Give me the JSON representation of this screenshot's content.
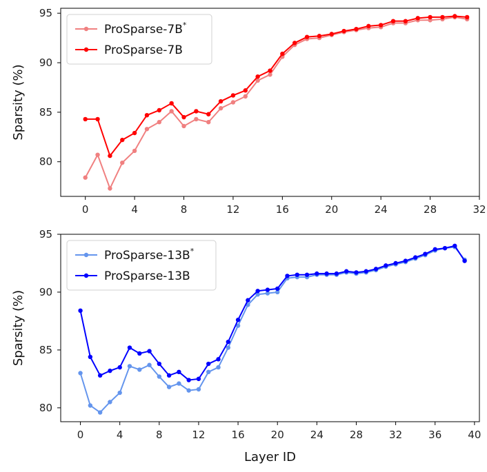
{
  "chart_data": [
    {
      "type": "line",
      "ylabel": "Sparsity (%)",
      "xlabel": "",
      "xlim": [
        -2,
        32
      ],
      "ylim": [
        76.5,
        95.5
      ],
      "xticks": [
        0,
        4,
        8,
        12,
        16,
        20,
        24,
        28,
        32
      ],
      "yticks": [
        80,
        85,
        90,
        95
      ],
      "grid": false,
      "legend_position": "top-left",
      "series": [
        {
          "name": "ProSparse-7B",
          "name_sup": "*",
          "color": "#f08080",
          "x": [
            0,
            1,
            2,
            3,
            4,
            5,
            6,
            7,
            8,
            9,
            10,
            11,
            12,
            13,
            14,
            15,
            16,
            17,
            18,
            19,
            20,
            21,
            22,
            23,
            24,
            25,
            26,
            27,
            28,
            29,
            30,
            31
          ],
          "values": [
            78.4,
            80.7,
            77.3,
            79.9,
            81.1,
            83.3,
            84.0,
            85.1,
            83.6,
            84.3,
            84.0,
            85.4,
            86.0,
            86.6,
            88.2,
            88.8,
            90.6,
            91.8,
            92.4,
            92.5,
            92.8,
            93.1,
            93.3,
            93.5,
            93.6,
            94.0,
            94.0,
            94.3,
            94.3,
            94.4,
            94.6,
            94.4
          ]
        },
        {
          "name": "ProSparse-7B",
          "name_sup": "",
          "color": "#ff0000",
          "x": [
            0,
            1,
            2,
            3,
            4,
            5,
            6,
            7,
            8,
            9,
            10,
            11,
            12,
            13,
            14,
            15,
            16,
            17,
            18,
            19,
            20,
            21,
            22,
            23,
            24,
            25,
            26,
            27,
            28,
            29,
            30,
            31
          ],
          "values": [
            84.3,
            84.3,
            80.6,
            82.2,
            82.9,
            84.7,
            85.2,
            85.9,
            84.5,
            85.1,
            84.8,
            86.1,
            86.7,
            87.2,
            88.6,
            89.2,
            90.9,
            92.0,
            92.6,
            92.7,
            92.9,
            93.2,
            93.4,
            93.7,
            93.8,
            94.2,
            94.2,
            94.5,
            94.6,
            94.6,
            94.7,
            94.6
          ]
        }
      ]
    },
    {
      "type": "line",
      "ylabel": "Sparsity (%)",
      "xlabel": "Layer ID",
      "xlim": [
        -2,
        40.5
      ],
      "ylim": [
        78.8,
        95.0
      ],
      "xticks": [
        0,
        4,
        8,
        12,
        16,
        20,
        24,
        28,
        32,
        36,
        40
      ],
      "yticks": [
        80,
        85,
        90,
        95
      ],
      "grid": false,
      "legend_position": "top-left",
      "series": [
        {
          "name": "ProSparse-13B",
          "name_sup": "*",
          "color": "#6495ed",
          "x": [
            0,
            1,
            2,
            3,
            4,
            5,
            6,
            7,
            8,
            9,
            10,
            11,
            12,
            13,
            14,
            15,
            16,
            17,
            18,
            19,
            20,
            21,
            22,
            23,
            24,
            25,
            26,
            27,
            28,
            29,
            30,
            31,
            32,
            33,
            34,
            35,
            36,
            37,
            38,
            39
          ],
          "values": [
            83.0,
            80.2,
            79.6,
            80.5,
            81.3,
            83.6,
            83.3,
            83.7,
            82.7,
            81.8,
            82.1,
            81.5,
            81.6,
            83.1,
            83.5,
            85.2,
            87.1,
            88.9,
            89.8,
            89.9,
            90.0,
            91.2,
            91.3,
            91.3,
            91.5,
            91.5,
            91.5,
            91.7,
            91.6,
            91.7,
            91.9,
            92.2,
            92.4,
            92.6,
            92.9,
            93.2,
            93.6,
            93.8,
            93.9,
            92.8
          ]
        },
        {
          "name": "ProSparse-13B",
          "name_sup": "",
          "color": "#0000ff",
          "x": [
            0,
            1,
            2,
            3,
            4,
            5,
            6,
            7,
            8,
            9,
            10,
            11,
            12,
            13,
            14,
            15,
            16,
            17,
            18,
            19,
            20,
            21,
            22,
            23,
            24,
            25,
            26,
            27,
            28,
            29,
            30,
            31,
            32,
            33,
            34,
            35,
            36,
            37,
            38,
            39
          ],
          "values": [
            88.4,
            84.4,
            82.8,
            83.2,
            83.5,
            85.2,
            84.7,
            84.9,
            83.8,
            82.8,
            83.1,
            82.4,
            82.5,
            83.8,
            84.2,
            85.7,
            87.6,
            89.3,
            90.1,
            90.2,
            90.3,
            91.4,
            91.5,
            91.5,
            91.6,
            91.6,
            91.6,
            91.8,
            91.7,
            91.8,
            92.0,
            92.3,
            92.5,
            92.7,
            93.0,
            93.3,
            93.7,
            93.8,
            94.0,
            92.7
          ]
        }
      ]
    }
  ]
}
